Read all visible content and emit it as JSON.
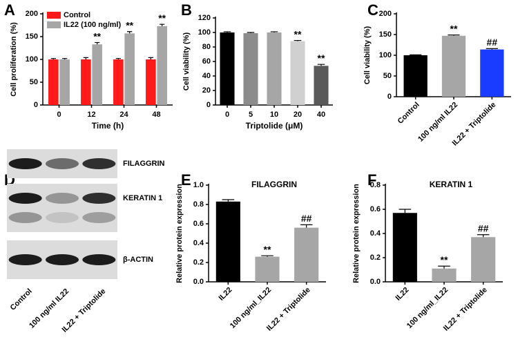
{
  "chart_data": [
    {
      "type": "bar",
      "panel": "A",
      "xlabel": "Time (h)",
      "ylabel": "Cell proliferation (%)",
      "categories": [
        "0",
        "12",
        "24",
        "48"
      ],
      "series": [
        {
          "name": "Control",
          "color": "#ff1a1a",
          "values": [
            100,
            100,
            100,
            100
          ],
          "errors": [
            2,
            4,
            2,
            4
          ],
          "significance": [
            null,
            null,
            null,
            null
          ]
        },
        {
          "name": "IL22 (100 ng/ml)",
          "color": "#a6a6a6",
          "values": [
            100,
            133,
            157,
            173
          ],
          "errors": [
            2,
            4,
            4,
            4
          ],
          "significance": [
            null,
            "**",
            "**",
            "**"
          ]
        }
      ],
      "ylim": [
        0,
        200
      ],
      "yticks": [
        0,
        50,
        100,
        150,
        200
      ],
      "legend": "upper left"
    },
    {
      "type": "bar",
      "panel": "B",
      "xlabel": "Triptolide (μM)",
      "ylabel": "Cell viability (%)",
      "categories": [
        "0",
        "5",
        "10",
        "20",
        "40"
      ],
      "values": [
        100,
        99,
        100,
        88,
        54
      ],
      "errors": [
        1,
        1,
        1,
        1,
        2
      ],
      "colors": [
        "#000000",
        "#8c8c8c",
        "#a6a6a6",
        "#d0d0d0",
        "#5a5a5a"
      ],
      "significance": [
        null,
        null,
        null,
        "**",
        "**"
      ],
      "ylim": [
        0,
        120
      ],
      "yticks": [
        0,
        20,
        40,
        60,
        80,
        100,
        120
      ]
    },
    {
      "type": "bar",
      "panel": "C",
      "ylabel": "Cell viability (%)",
      "categories": [
        "Control",
        "100 ng/ml IL22",
        "IL22 + Triptolide"
      ],
      "values": [
        100,
        147,
        114
      ],
      "errors": [
        1,
        2,
        2
      ],
      "colors": [
        "#000000",
        "#a6a6a6",
        "#1a3cff"
      ],
      "significance": [
        null,
        "**",
        "##"
      ],
      "ylim": [
        0,
        200
      ],
      "yticks": [
        0,
        50,
        100,
        150,
        200
      ]
    },
    {
      "type": "blot",
      "panel": "D",
      "rows": [
        "FILAGGRIN",
        "KERATIN  1",
        "β-ACTIN"
      ],
      "lanes": [
        "Control",
        "100 ng/ml IL22",
        "IL22 + Triptolide"
      ]
    },
    {
      "type": "bar",
      "panel": "E",
      "title": "FILAGGRIN",
      "ylabel": "Relative protein expression",
      "categories": [
        "IL22",
        "100 ng/ml_IL22",
        "IL22 + Triptolide"
      ],
      "values": [
        0.83,
        0.26,
        0.56
      ],
      "errors": [
        0.02,
        0.01,
        0.03
      ],
      "colors": [
        "#000000",
        "#a6a6a6",
        "#a6a6a6"
      ],
      "significance": [
        null,
        "**",
        "##"
      ],
      "ylim": [
        0,
        1.0
      ],
      "yticks": [
        {
          "value": 0,
          "label": "0.0"
        },
        0.2,
        0.4,
        0.6,
        0.8,
        {
          "value": 1.0,
          "label": "1.0"
        }
      ]
    },
    {
      "type": "bar",
      "panel": "F",
      "title": "KERATIN  1",
      "ylabel": "Relative protein expression",
      "categories": [
        "IL22",
        "100 ng/ml_IL22",
        "IL22 + Triptolide"
      ],
      "values": [
        0.57,
        0.11,
        0.37
      ],
      "errors": [
        0.03,
        0.02,
        0.02
      ],
      "colors": [
        "#000000",
        "#a6a6a6",
        "#a6a6a6"
      ],
      "significance": [
        null,
        "**",
        "##"
      ],
      "ylim": [
        0,
        0.8
      ],
      "yticks": [
        {
          "value": 0,
          "label": "0.0"
        },
        0.2,
        0.4,
        0.6,
        0.8
      ]
    }
  ]
}
